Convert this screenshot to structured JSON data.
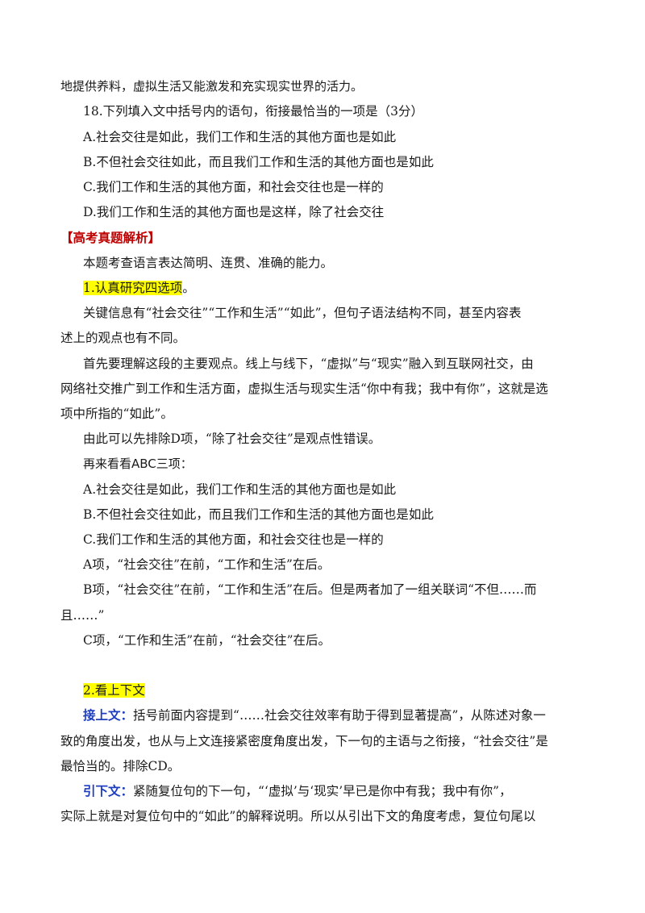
{
  "lines": {
    "l1": "地提供养料，虚拟生活又能激发和充实现实世界的活力。",
    "q18": "18.下列填入文中括号内的语句，衔接最恰当的一项是（3分）",
    "optA": "A.社会交往是如此，我们工作和生活的其他方面也是如此",
    "optB": "B.不但社会交往如此，而且我们工作和生活的其他方面也是如此",
    "optC": "C.我们工作和生活的其他方面，和社会交往也是一样的",
    "optD": "D.我们工作和生活的其他方面也是这样，除了社会交往",
    "heading": "【高考真题解析】",
    "intro": "本题考查语言表达简明、连贯、准确的能力。",
    "sec1": "1.认真研究四选项",
    "sec1_tail": "。",
    "p1a": "关键信息有“社会交往”“工作和生活”“如此”，但句子语法结构不同，甚至内容表",
    "p1b": "述上的观点也有不同。",
    "p2a": "首先要理解这段的主要观点。线上与线下，“虚拟”与“现实”融入到互联网社交，由",
    "p2b": "网络社交推广到工作和生活方面，虚拟生活与现实生活“你中有我；我中有你”，这就是选",
    "p2c": "项中所指的“如此”。",
    "p3": "由此可以先排除D项，“除了社会交往”是观点性错误。",
    "p4": "再来看看ABC三项：",
    "rA": "A.社会交往是如此，我们工作和生活的其他方面也是如此",
    "rB": "B.不但社会交往如此，而且我们工作和生活的其他方面也是如此",
    "rC": "C.我们工作和生活的其他方面，和社会交往也是一样的",
    "aA": "A项，“社会交往”在前，“工作和生活”在后。",
    "aB1": "B项，“社会交往”在前，“工作和生活”在后。但是两者加了一组关联词“不但……而",
    "aB2": "且……”",
    "aC": "C项，“工作和生活”在前，“社会交往”在后。",
    "sec2": "2.看上下文",
    "j_label": "接上文：",
    "j1": "括号前面内容提到“……社会交往效率有助于得到显著提高”，从陈述对象一",
    "j2": "致的角度出发，也从与上文连接紧密度角度出发，下一句的主语与之衔接，“社会交往”是",
    "j3": "最恰当的。排除CD。",
    "y_label": "引下文：",
    "y1": "紧随复位句的下一句，“‘虚拟’与‘现实’早已是你中有我；我中有你”，",
    "y2": "实际上就是对复位句中的“如此”的解释说明。所以从引出下文的角度考虑，复位句尾以"
  },
  "colors": {
    "heading": "#c00000",
    "label": "#1f3fbf",
    "highlight": "#ffff00"
  }
}
